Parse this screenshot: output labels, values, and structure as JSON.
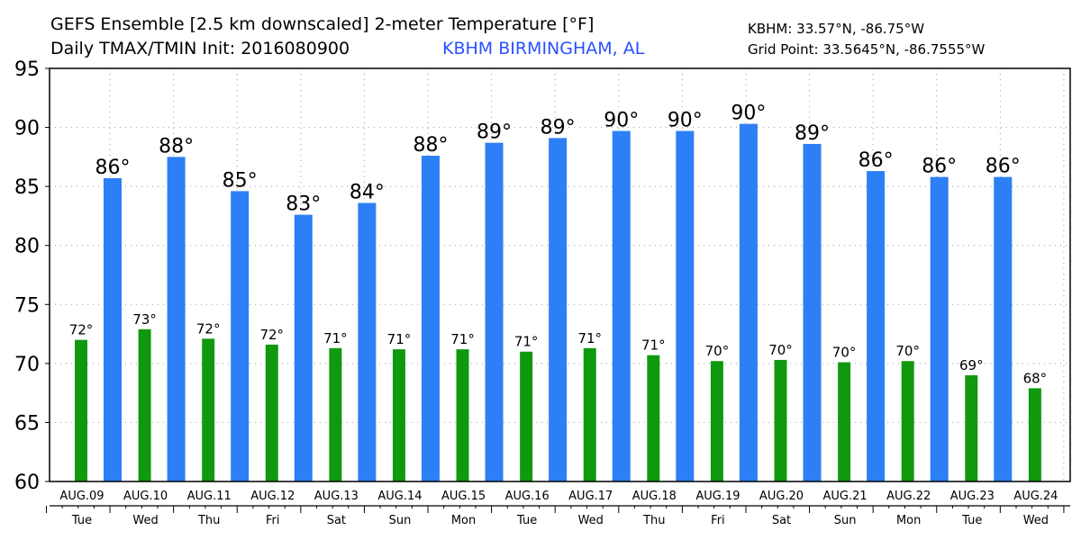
{
  "header": {
    "title_line1": "GEFS Ensemble [2.5 km downscaled] 2-meter Temperature [°F]",
    "title_line2": "Daily TMAX/TMIN Init: 2016080900",
    "location": "KBHM BIRMINGHAM, AL",
    "station_coords": "KBHM: 33.57°N, -86.75°W",
    "grid_point": "Grid Point: 33.5645°N, -86.7555°W"
  },
  "colors": {
    "tmax": "#2d7ff5",
    "tmin": "#10990f",
    "location_text": "#2a50ff"
  },
  "chart_data": {
    "type": "bar",
    "title": "GEFS Ensemble [2.5 km downscaled] 2-meter Temperature [°F]",
    "subtitle": "Daily TMAX/TMIN Init: 2016080900",
    "categories": [
      "AUG.09",
      "AUG.10",
      "AUG.11",
      "AUG.12",
      "AUG.13",
      "AUG.14",
      "AUG.15",
      "AUG.16",
      "AUG.17",
      "AUG.18",
      "AUG.19",
      "AUG.20",
      "AUG.21",
      "AUG.22",
      "AUG.23",
      "AUG.24"
    ],
    "weekdays": [
      "Tue",
      "Wed",
      "Thu",
      "Fri",
      "Sat",
      "Sun",
      "Mon",
      "Tue",
      "Wed",
      "Thu",
      "Fri",
      "Sat",
      "Sun",
      "Mon",
      "Tue",
      "Wed"
    ],
    "ylim": [
      60,
      95
    ],
    "yticks": [
      60,
      65,
      70,
      75,
      80,
      85,
      90,
      95
    ],
    "grid": true,
    "series": [
      {
        "name": "TMIN",
        "values": [
          72.0,
          72.9,
          72.1,
          71.6,
          71.3,
          71.2,
          71.2,
          71.0,
          71.3,
          70.7,
          70.2,
          70.3,
          70.1,
          70.2,
          69.0,
          67.9
        ],
        "labels": [
          "72°",
          "73°",
          "72°",
          "72°",
          "71°",
          "71°",
          "71°",
          "71°",
          "71°",
          "71°",
          "70°",
          "70°",
          "70°",
          "70°",
          "69°",
          "68°"
        ]
      },
      {
        "name": "TMAX",
        "values": [
          85.7,
          87.5,
          84.6,
          82.6,
          83.6,
          87.6,
          88.7,
          89.1,
          89.7,
          89.7,
          90.3,
          88.6,
          86.3,
          85.8,
          85.8,
          null
        ],
        "labels": [
          "86°",
          "88°",
          "85°",
          "83°",
          "84°",
          "88°",
          "89°",
          "89°",
          "90°",
          "90°",
          "90°",
          "89°",
          "86°",
          "86°",
          "86°",
          ""
        ]
      }
    ]
  }
}
